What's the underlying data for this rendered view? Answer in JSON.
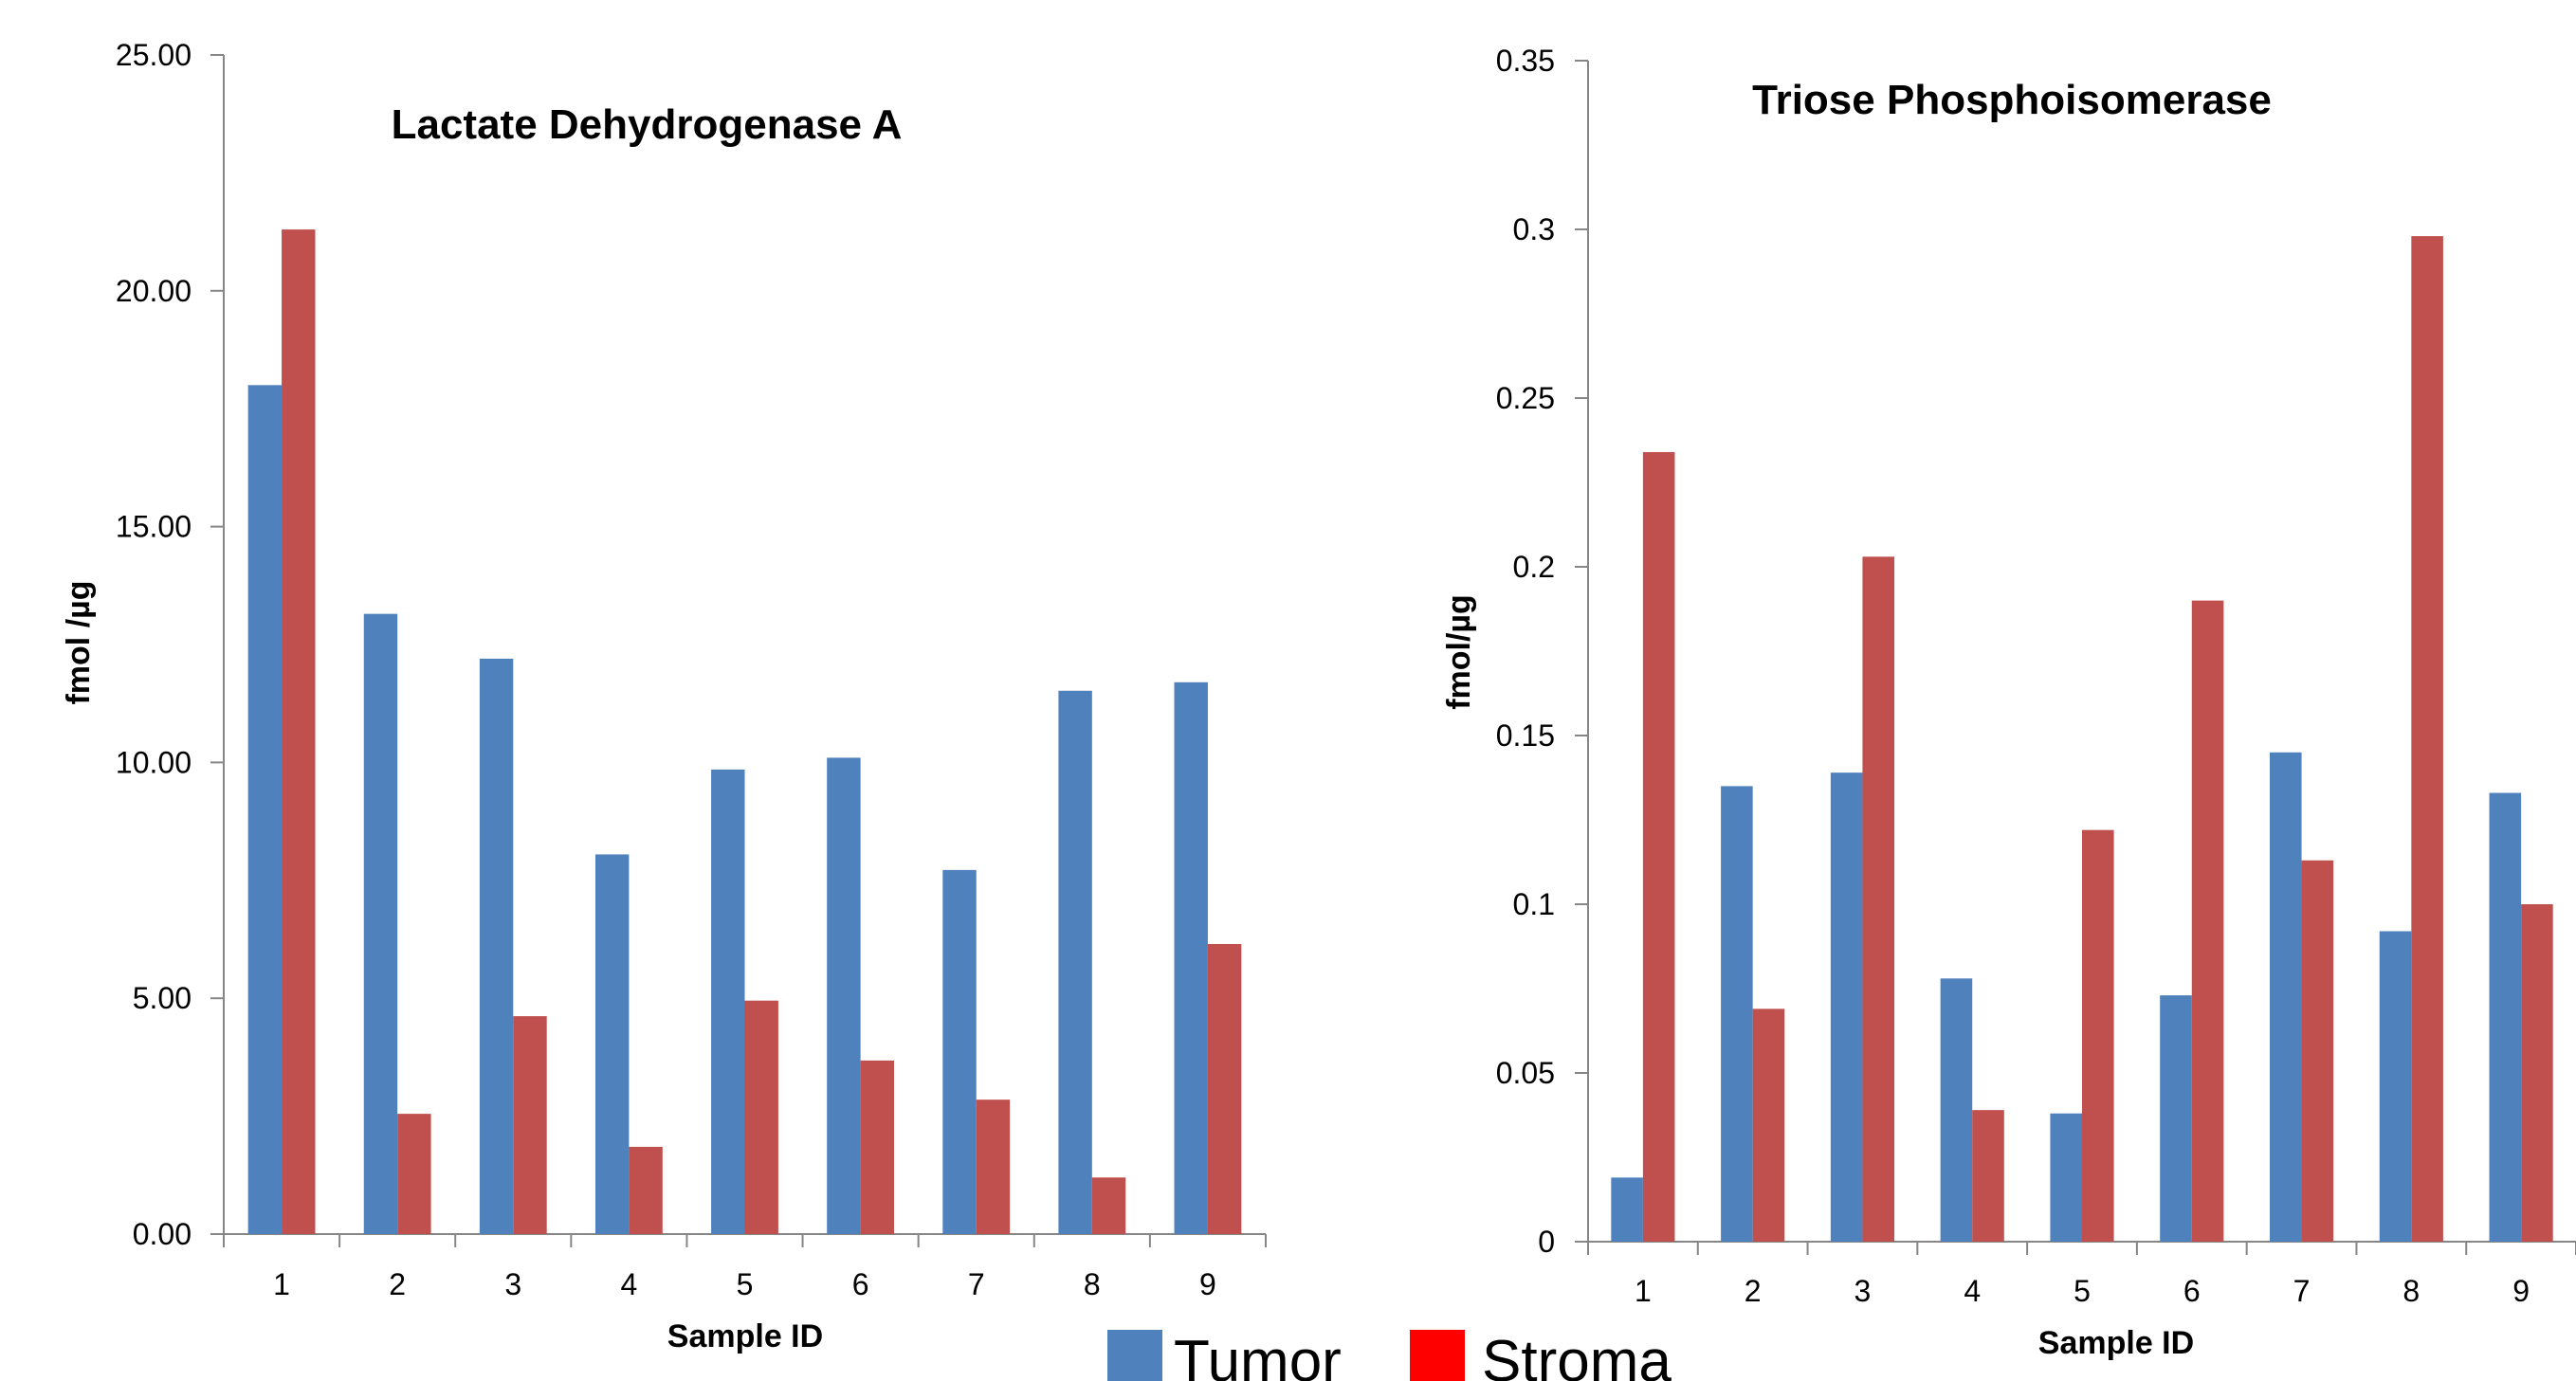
{
  "colors": {
    "tumor": "#4F81BD",
    "stroma_bar": "#C0504D",
    "stroma_legend": "#FF0000",
    "axis": "#868686"
  },
  "legend": {
    "tumor_label": "Tumor",
    "stroma_label": "Stroma"
  },
  "chart_data": [
    {
      "type": "bar",
      "title": "Lactate Dehydrogenase A",
      "xlabel": "Sample ID",
      "ylabel": "fmol /µg",
      "categories": [
        "1",
        "2",
        "3",
        "4",
        "5",
        "6",
        "7",
        "8",
        "9"
      ],
      "ylim": [
        0,
        25
      ],
      "yticks": [
        "0.00",
        "5.00",
        "10.00",
        "15.00",
        "20.00",
        "25.00"
      ],
      "grid": false,
      "series": [
        {
          "name": "Tumor",
          "values": [
            18.0,
            13.15,
            12.2,
            8.05,
            9.85,
            10.1,
            7.72,
            11.52,
            11.7
          ]
        },
        {
          "name": "Stroma",
          "values": [
            21.3,
            2.55,
            4.62,
            1.85,
            4.95,
            3.68,
            2.85,
            1.2,
            6.15
          ]
        }
      ]
    },
    {
      "type": "bar",
      "title": "Triose Phosphoisomerase",
      "xlabel": "Sample ID",
      "ylabel": "fmol/µg",
      "categories": [
        "1",
        "2",
        "3",
        "4",
        "5",
        "6",
        "7",
        "8",
        "9"
      ],
      "ylim": [
        0,
        0.35
      ],
      "yticks": [
        "0",
        "0.05",
        "0.1",
        "0.15",
        "0.2",
        "0.25",
        "0.3",
        "0.35"
      ],
      "grid": false,
      "series": [
        {
          "name": "Tumor",
          "values": [
            0.019,
            0.135,
            0.139,
            0.078,
            0.038,
            0.073,
            0.145,
            0.092,
            0.133
          ]
        },
        {
          "name": "Stroma",
          "values": [
            0.234,
            0.069,
            0.203,
            0.039,
            0.122,
            0.19,
            0.113,
            0.298,
            0.1
          ]
        }
      ]
    }
  ]
}
